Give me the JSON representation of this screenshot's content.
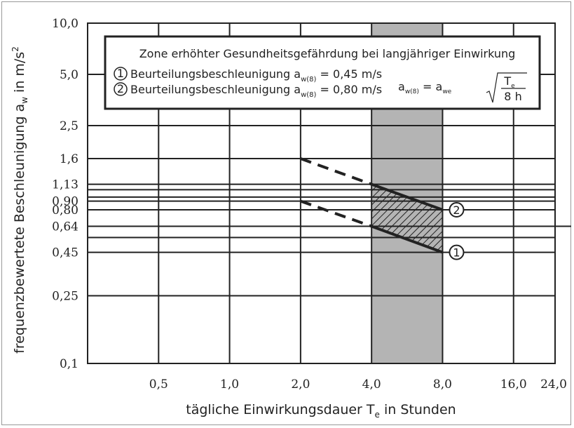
{
  "chart_data": {
    "type": "line",
    "xlabel": "tägliche Einwirkungsdauer T",
    "xlabel_sub": "e",
    "xlabel_suffix": " in Stunden",
    "ylabel": "frequenzbewertete Beschleunigung a",
    "ylabel_sub": "w",
    "ylabel_suffix": " in m/s",
    "ylabel_sup": "2",
    "x_scale": "log",
    "y_scale": "log",
    "xlim": [
      0.25,
      24.0
    ],
    "ylim": [
      0.1,
      10.0
    ],
    "x_ticks": [
      {
        "value": 0.5,
        "label": "0,5"
      },
      {
        "value": 1.0,
        "label": "1,0"
      },
      {
        "value": 2.0,
        "label": "2,0"
      },
      {
        "value": 4.0,
        "label": "4,0"
      },
      {
        "value": 8.0,
        "label": "8,0"
      },
      {
        "value": 16.0,
        "label": "16,0"
      },
      {
        "value": 24.0,
        "label": "24,0"
      }
    ],
    "y_ticks": [
      {
        "value": 10.0,
        "label": "10,0"
      },
      {
        "value": 5.0,
        "label": "5,0"
      },
      {
        "value": 2.5,
        "label": "2,5"
      },
      {
        "value": 1.6,
        "label": "1,6"
      },
      {
        "value": 1.13,
        "label": "1,13"
      },
      {
        "value": 0.9,
        "label": "0,90"
      },
      {
        "value": 0.8,
        "label": "0,80"
      },
      {
        "value": 0.64,
        "label": "0,64"
      },
      {
        "value": 0.45,
        "label": "0,45"
      },
      {
        "value": 0.25,
        "label": "0,25"
      },
      {
        "value": 0.1,
        "label": "0,1"
      }
    ],
    "extra_gridlines_y": [
      1.05,
      0.95,
      0.55
    ],
    "shaded_band_x": [
      4.0,
      8.0
    ],
    "series": [
      {
        "marker": "2",
        "solid": [
          {
            "x": 4.0,
            "y": 1.13
          },
          {
            "x": 8.0,
            "y": 0.8
          }
        ],
        "dashed": [
          {
            "x": 2.0,
            "y": 1.6
          },
          {
            "x": 4.0,
            "y": 1.13
          }
        ]
      },
      {
        "marker": "1",
        "solid": [
          {
            "x": 4.0,
            "y": 0.64
          },
          {
            "x": 8.0,
            "y": 0.45
          }
        ],
        "dashed": [
          {
            "x": 2.0,
            "y": 0.9
          },
          {
            "x": 4.0,
            "y": 0.64
          }
        ]
      }
    ],
    "hatched_region": [
      {
        "x": 4.0,
        "y": 1.13
      },
      {
        "x": 8.0,
        "y": 0.8
      },
      {
        "x": 8.0,
        "y": 0.45
      },
      {
        "x": 4.0,
        "y": 0.64
      }
    ],
    "legend": {
      "title": "Zone erhöhter Gesundheitsgefährdung bei langjähriger Einwirkung",
      "items": [
        {
          "marker": "1",
          "text": "Beurteilungsbeschleunigung a",
          "sub": "w(8)",
          "value": "= 0,45 m/s"
        },
        {
          "marker": "2",
          "text": "Beurteilungsbeschleunigung a",
          "sub": "w(8)",
          "value": "= 0,80 m/s"
        }
      ],
      "formula": {
        "lhs": "a",
        "lhs_sub": "w(8)",
        "eq": "= a",
        "rhs_sub": "we",
        "num": "T",
        "num_sub": "e",
        "den": "8 h"
      }
    }
  }
}
